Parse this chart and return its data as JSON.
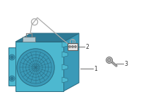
{
  "bg_color": "#ffffff",
  "unit_color": "#4db8d0",
  "unit_dark": "#3a9ab8",
  "unit_darker": "#2d7a96",
  "unit_stroke": "#2a6a80",
  "label_color": "#333333",
  "line_color": "#999999",
  "part1_label": "1",
  "part2_label": "2",
  "part3_label": "3",
  "figw": 2.0,
  "figh": 1.47,
  "dpi": 100
}
